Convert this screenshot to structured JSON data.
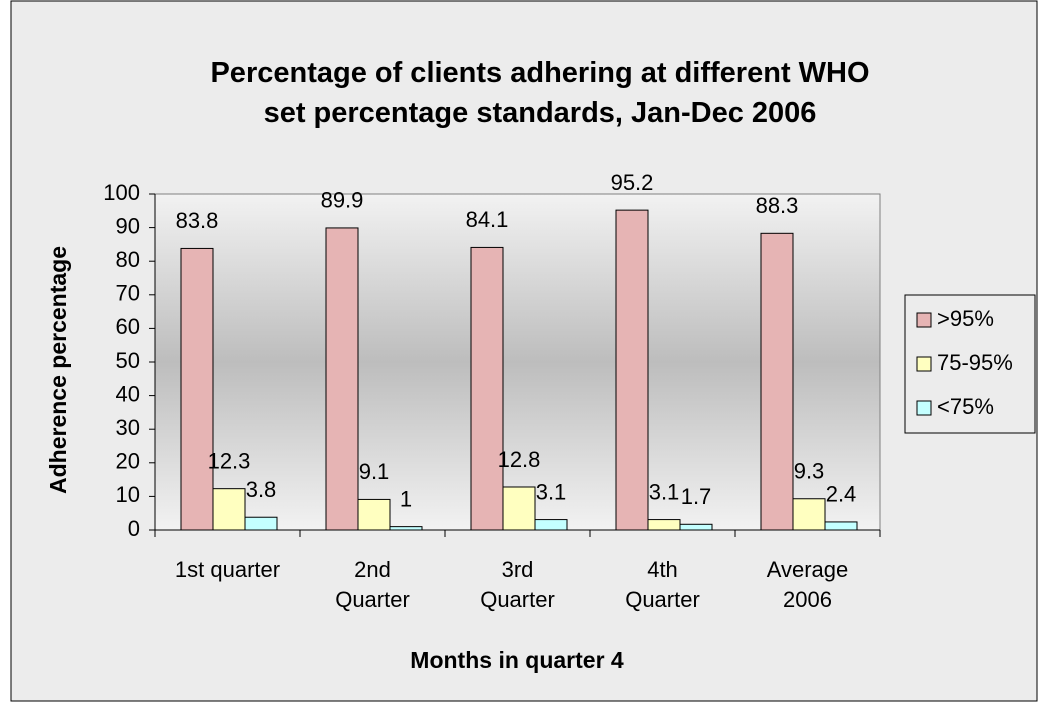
{
  "chart_data": {
    "type": "bar",
    "title": "Percentage of clients adhering at different WHO set percentage standards, Jan-Dec 2006",
    "x_label": "Months in quarter 4",
    "y_label": "Adherence percentage",
    "categories": [
      "1st quarter",
      "2nd\nQuarter",
      "3rd\nQuarter",
      "4th\nQuarter",
      "Average\n2006"
    ],
    "series": [
      {
        "name": ">95%",
        "color": "#e6b4b4",
        "values": [
          83.8,
          89.9,
          84.1,
          95.2,
          88.3
        ]
      },
      {
        "name": "75-95%",
        "color": "#ffffc0",
        "values": [
          12.3,
          9.1,
          12.8,
          3.1,
          9.3
        ]
      },
      {
        "name": "<75%",
        "color": "#c4ffff",
        "values": [
          3.8,
          1,
          3.1,
          1.7,
          2.4
        ]
      }
    ],
    "ylim": [
      0,
      100
    ],
    "yticks": [
      0,
      10,
      20,
      30,
      40,
      50,
      60,
      70,
      80,
      90,
      100
    ],
    "legend": "right"
  }
}
